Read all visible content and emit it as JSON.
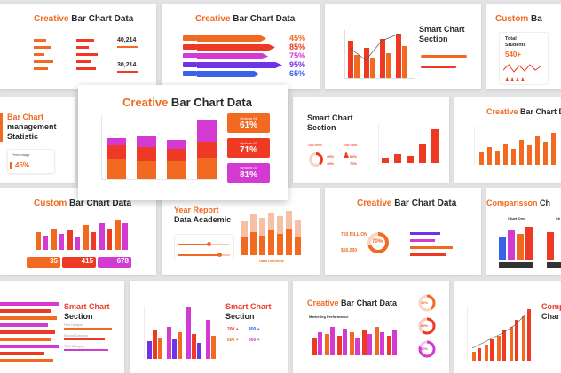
{
  "slides": {
    "s1": {
      "title_accent": "Creative",
      "title_rest": " Bar Chart Data",
      "stat_a": "40,214",
      "stat_b": "30,214"
    },
    "s2": {
      "title_accent": "Creative",
      "title_rest": " Bar Chart Data",
      "pcts": [
        "45%",
        "85%",
        "75%",
        "95%",
        "65%"
      ]
    },
    "s3": {
      "title_line1": "Smart Chart",
      "title_line2": "Section"
    },
    "s4": {
      "title_accent": "Custom",
      "title_rest": " Ba",
      "label": "Total",
      "label2": "Students",
      "value": "540+"
    },
    "s5": {
      "title_line1": "Bar Chart",
      "title_line2": "management",
      "title_line3": "Statistic",
      "pct": "45%",
      "caption": "Percentage"
    },
    "main": {
      "title_accent": "Creative",
      "title_rest": " Bar Chart Data",
      "options": [
        {
          "label": "Options 01",
          "value": "61%"
        },
        {
          "label": "Options 02",
          "value": "71%"
        },
        {
          "label": "Options 03",
          "value": "81%"
        }
      ]
    },
    "s7": {
      "title_line1": "Smart Chart",
      "title_line2": "Section",
      "labels": [
        "Total Items",
        "Total Stats"
      ],
      "vals": [
        "40%",
        "40%",
        "60%",
        "70%"
      ]
    },
    "s8": {
      "title_accent": "Creative",
      "title_rest": " Bar Chart D"
    },
    "s9": {
      "title_accent": "Custom",
      "title_rest": " Bar Chart Data",
      "stats": [
        "35",
        "415",
        "678"
      ]
    },
    "s10": {
      "title_line1": "Year Report",
      "title_line2": "Data Academic",
      "caption": "Data Overview"
    },
    "s11": {
      "title_accent": "Creative",
      "title_rest": " Bar Chart Data",
      "stat_a": "750 BILLION",
      "stat_b": "$50,000",
      "donut": "70%"
    },
    "s12": {
      "title_accent": "Comparisson",
      "title_rest": " Ch",
      "chart_label": "Chart One",
      "chart_label2": "Ch"
    },
    "s13": {
      "title_line1": "Smart Chart",
      "title_line2": "Section",
      "labels": [
        "First Category",
        "Second Category",
        "Third Category"
      ]
    },
    "s14": {
      "title_line1": "Smart Chart",
      "title_line2": "Section",
      "stats": [
        "200 +",
        "400 +",
        "600 +",
        "800 +"
      ]
    },
    "s15": {
      "title_accent": "Creative",
      "title_rest": " Bar Chart Data",
      "subtitle": "Marketing Performance",
      "donuts": [
        "40%",
        "60%",
        "80%"
      ]
    },
    "s16": {
      "title_line1": "Comp",
      "title_line2": "Char"
    }
  },
  "colors": {
    "orange": "#f26a21",
    "red": "#ee3a24",
    "magenta": "#d23ad2",
    "purple": "#6e35e6",
    "blue": "#3a62e8",
    "light": "#f7b08f",
    "dark": "#2a2a2a"
  }
}
